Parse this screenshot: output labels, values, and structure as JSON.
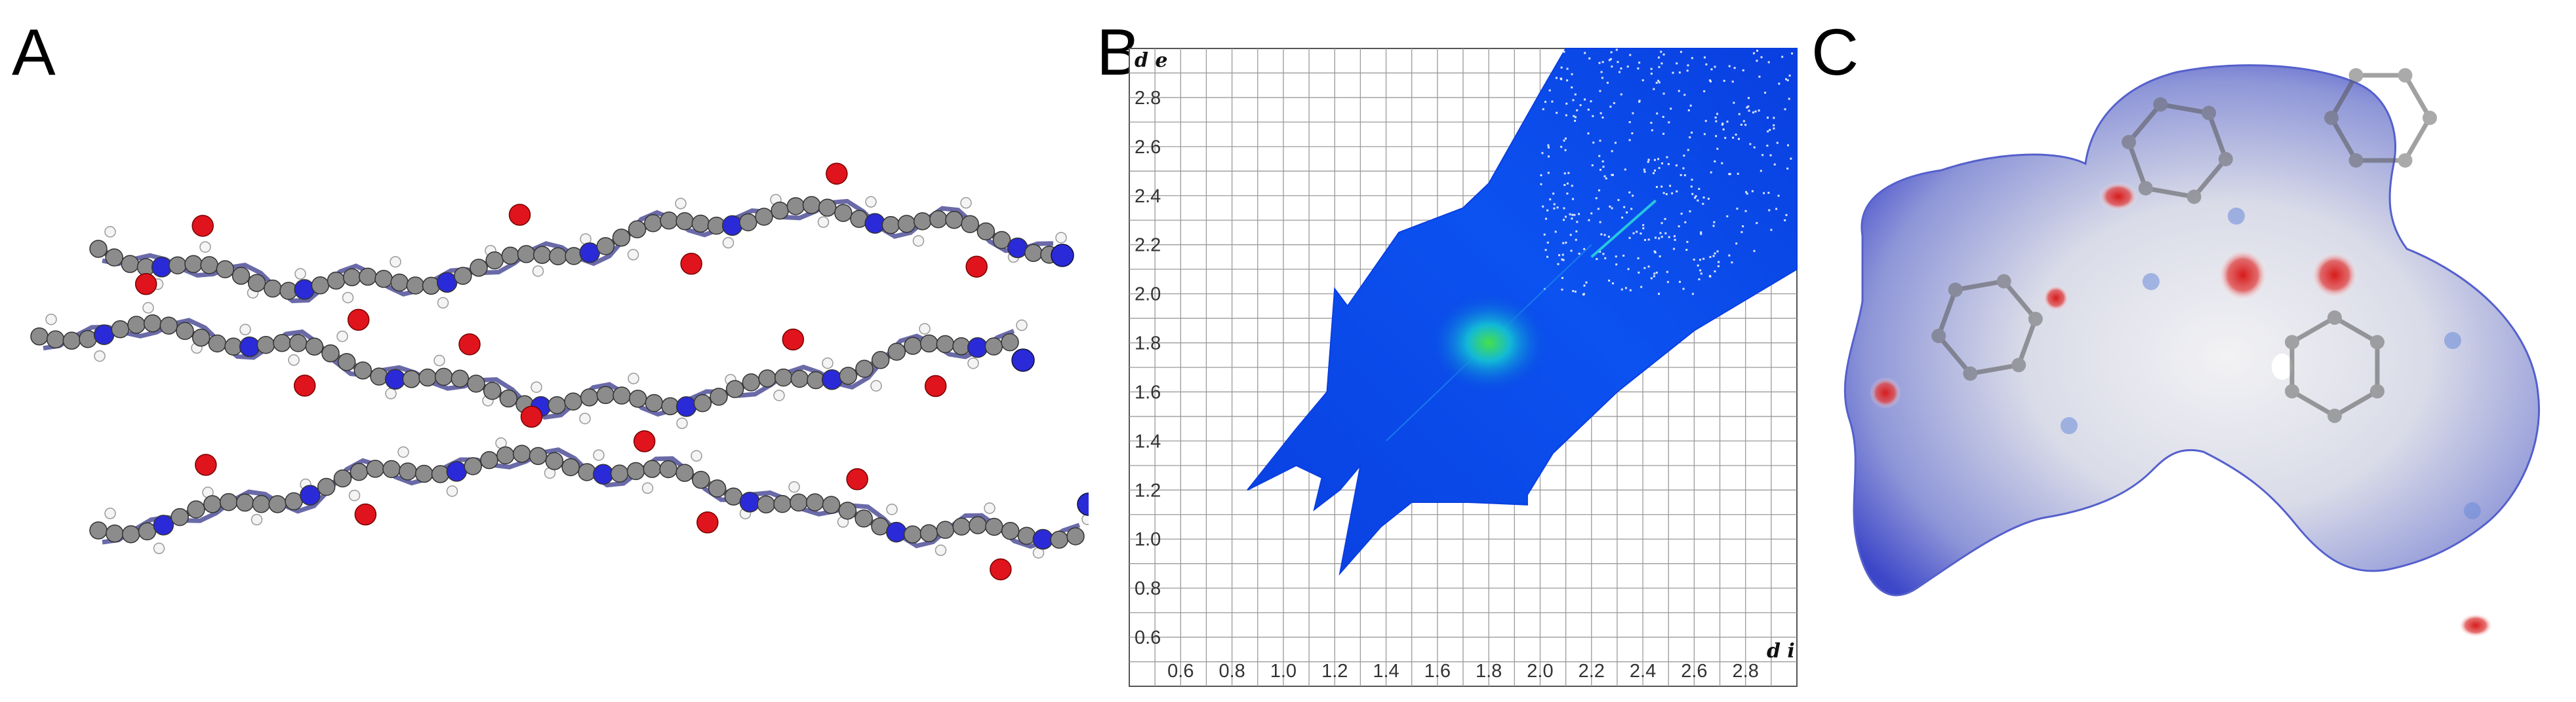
{
  "panels": {
    "a": "A",
    "b": "B",
    "c": "C"
  },
  "fingerprint": {
    "x_title": "d i",
    "y_title": "d e",
    "x_ticks": [
      "0.6",
      "0.8",
      "1.0",
      "1.2",
      "1.4",
      "1.6",
      "1.8",
      "2.0",
      "2.2",
      "2.4",
      "2.6",
      "2.8"
    ],
    "y_ticks": [
      "0.6",
      "0.8",
      "1.0",
      "1.2",
      "1.4",
      "1.6",
      "1.8",
      "2.0",
      "2.2",
      "2.4",
      "2.6",
      "2.8"
    ],
    "x_range": [
      0.4,
      3.0
    ],
    "y_range": [
      0.4,
      3.0
    ]
  },
  "colors": {
    "carbon": "#8c8c8c",
    "oxygen": "#e0141c",
    "nitrogen": "#2a2ad8",
    "hydrogen": "#f4f4f4",
    "fingerprint_low": "#0a3fe0",
    "fingerprint_high": "#46e04a",
    "surface": "#c9cde6",
    "surface_contact": "#d81a1a"
  }
}
